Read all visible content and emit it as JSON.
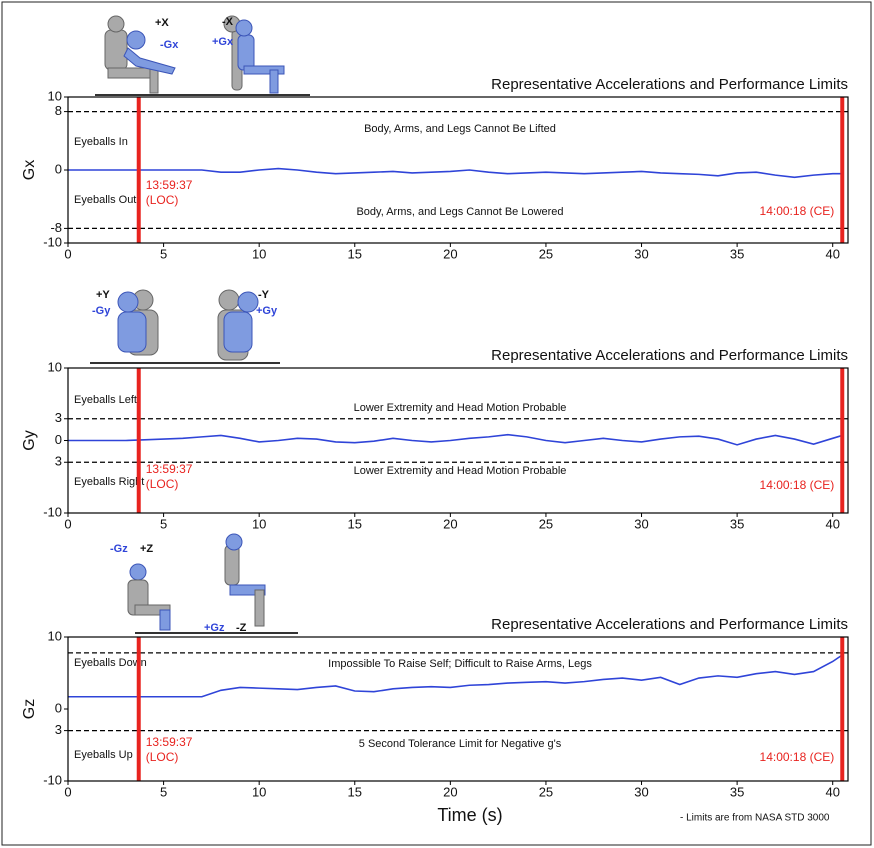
{
  "footnote": "- Limits are from NASA STD 3000",
  "chart_data": [
    {
      "type": "line",
      "title": "Representative Accelerations and Performance Limits",
      "y_label": "Gx",
      "icon_labels": [
        "+X",
        "-Gx",
        "-X",
        "+Gx"
      ],
      "region_labels": [
        "Eyeballs In",
        "Eyeballs Out"
      ],
      "limit_labels": [
        "Body, Arms, and Legs Cannot Be Lifted",
        "Body, Arms, and Legs Cannot Be Lowered"
      ],
      "limit_lines": [
        8,
        -8
      ],
      "events": [
        {
          "x": 3.7,
          "label": [
            "13:59:37",
            "(LOC)"
          ],
          "color": "#e8231f"
        },
        {
          "x": 40.5,
          "label": [
            "14:00:18 (CE)"
          ],
          "color": "#e8231f"
        }
      ],
      "xlim": [
        0,
        40.8
      ],
      "xticks": [
        0,
        5,
        10,
        15,
        20,
        25,
        30,
        35,
        40
      ],
      "ylim": [
        -10,
        10
      ],
      "yticks": [
        10,
        8,
        0,
        -8,
        -10
      ],
      "x": [
        0,
        1,
        2,
        3,
        4,
        5,
        6,
        7,
        8,
        9,
        10,
        11,
        12,
        13,
        14,
        15,
        16,
        17,
        18,
        19,
        20,
        21,
        22,
        23,
        24,
        25,
        26,
        27,
        28,
        29,
        30,
        31,
        32,
        33,
        34,
        35,
        36,
        37,
        38,
        39,
        40,
        40.5
      ],
      "color": "#2f44d8",
      "values": [
        0,
        0,
        0,
        0,
        0,
        0,
        0,
        0,
        -0.3,
        -0.3,
        0,
        0.2,
        0,
        -0.3,
        -0.5,
        -0.4,
        -0.3,
        -0.2,
        -0.4,
        -0.3,
        -0.2,
        0,
        -0.3,
        -0.5,
        -0.4,
        -0.3,
        -0.4,
        -0.5,
        -0.4,
        -0.3,
        -0.2,
        -0.4,
        -0.5,
        -0.6,
        -0.8,
        -0.4,
        -0.3,
        -0.7,
        -1.0,
        -0.7,
        -0.5,
        -0.5
      ]
    },
    {
      "type": "line",
      "title": "Representative Accelerations and Performance Limits",
      "y_label": "Gy",
      "icon_labels": [
        "+Y",
        "-Gy",
        "-Y",
        "+Gy"
      ],
      "region_labels": [
        "Eyeballs Left",
        "Eyeballs Right"
      ],
      "limit_labels": [
        "Lower Extremity and Head Motion Probable",
        "Lower Extremity and Head Motion Probable"
      ],
      "limit_lines": [
        3,
        -3
      ],
      "events": [
        {
          "x": 3.7,
          "label": [
            "13:59:37",
            "(LOC)"
          ],
          "color": "#e8231f"
        },
        {
          "x": 40.5,
          "label": [
            "14:00:18 (CE)"
          ],
          "color": "#e8231f"
        }
      ],
      "xlim": [
        0,
        40.8
      ],
      "xticks": [
        0,
        5,
        10,
        15,
        20,
        25,
        30,
        35,
        40
      ],
      "ylim": [
        -10,
        10
      ],
      "yticks": [
        10,
        3,
        0,
        {
          "value": -3,
          "label": "3"
        },
        -10
      ],
      "x": [
        0,
        1,
        2,
        3,
        4,
        5,
        6,
        7,
        8,
        9,
        10,
        11,
        12,
        13,
        14,
        15,
        16,
        17,
        18,
        19,
        20,
        21,
        22,
        23,
        24,
        25,
        26,
        27,
        28,
        29,
        30,
        31,
        32,
        33,
        34,
        35,
        36,
        37,
        38,
        39,
        40,
        40.5
      ],
      "color": "#2f44d8",
      "values": [
        0,
        0,
        0,
        0,
        0.1,
        0.2,
        0.3,
        0.5,
        0.7,
        0.3,
        -0.2,
        0,
        0.3,
        0.2,
        -0.2,
        -0.3,
        -0.1,
        0.3,
        0,
        -0.2,
        0,
        0.3,
        0.5,
        0.8,
        0.5,
        0,
        -0.3,
        0,
        0.3,
        0,
        -0.2,
        0.2,
        0.5,
        0.6,
        0.2,
        -0.6,
        0.2,
        0.7,
        0.2,
        -0.5,
        0.3,
        0.7
      ]
    },
    {
      "type": "line",
      "title": "Representative Accelerations and Performance Limits",
      "y_label": "Gz",
      "x_label": "Time (s)",
      "icon_labels": [
        "-Gz",
        "+Z",
        "+Gz",
        "-Z"
      ],
      "region_labels": [
        "Eyeballs Down",
        "Eyeballs Up"
      ],
      "limit_labels": [
        "Impossible To Raise Self; Difficult to Raise Arms, Legs",
        "5 Second Tolerance Limit for Negative g's"
      ],
      "limit_lines": [
        7.8,
        -3
      ],
      "events": [
        {
          "x": 3.7,
          "label": [
            "13:59:37",
            "(LOC)"
          ],
          "color": "#e8231f"
        },
        {
          "x": 40.5,
          "label": [
            "14:00:18 (CE)"
          ],
          "color": "#e8231f"
        }
      ],
      "xlim": [
        0,
        40.8
      ],
      "xticks": [
        0,
        5,
        10,
        15,
        20,
        25,
        30,
        35,
        40
      ],
      "ylim": [
        -10,
        10
      ],
      "yticks": [
        10,
        0,
        {
          "value": -3,
          "label": "3"
        },
        -10
      ],
      "x": [
        0,
        1,
        2,
        3,
        4,
        5,
        6,
        7,
        8,
        9,
        10,
        11,
        12,
        13,
        14,
        15,
        16,
        17,
        18,
        19,
        20,
        21,
        22,
        23,
        24,
        25,
        26,
        27,
        28,
        29,
        30,
        31,
        32,
        33,
        34,
        35,
        36,
        37,
        38,
        39,
        40,
        40.5
      ],
      "color": "#2f44d8",
      "values": [
        1.7,
        1.7,
        1.7,
        1.7,
        1.7,
        1.7,
        1.7,
        1.7,
        2.6,
        3.0,
        2.9,
        2.8,
        2.7,
        3.0,
        3.2,
        2.5,
        2.4,
        2.8,
        3.0,
        3.1,
        3.0,
        3.3,
        3.4,
        3.6,
        3.7,
        3.8,
        3.6,
        3.8,
        4.1,
        4.3,
        4.0,
        4.4,
        3.4,
        4.3,
        4.6,
        4.4,
        4.9,
        5.2,
        4.8,
        5.2,
        6.6,
        7.5
      ]
    }
  ]
}
